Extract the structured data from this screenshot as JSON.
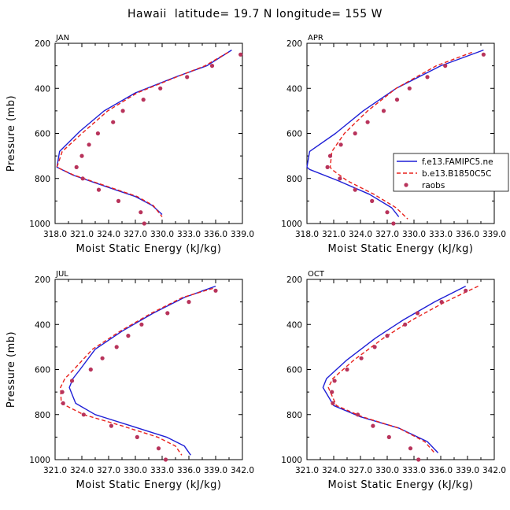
{
  "title": "Hawaii  latitude= 19.7 N longitude= 155 W",
  "colors": {
    "model_a": "#1f1fd6",
    "model_b": "#e8211c",
    "obs": "#b8335b"
  },
  "legend": {
    "items": [
      {
        "label": "f.e13.FAMIPC5.ne",
        "style": "solid",
        "color": "#1f1fd6"
      },
      {
        "label": "b.e13.B1850C5C",
        "style": "dashed",
        "color": "#e8211c"
      },
      {
        "label": "raobs",
        "style": "dots",
        "color": "#b8335b"
      }
    ]
  },
  "chart_data": [
    {
      "type": "line",
      "title": "JAN",
      "xlabel": "Moist Static Energy (kJ/kg)",
      "ylabel": "Pressure (mb)",
      "xlim": [
        318.0,
        339.0
      ],
      "xticks": [
        318.0,
        321.0,
        324.0,
        327.0,
        330.0,
        333.0,
        336.0,
        339.0
      ],
      "xtick_labels": [
        "318.0",
        "321.0",
        "324.0",
        "327.0",
        "330.0",
        "333.0",
        "336.0",
        "339.0"
      ],
      "ylim": [
        200,
        1000
      ],
      "yticks": [
        200,
        400,
        600,
        800,
        1000
      ],
      "series": [
        {
          "name": "f.e13.FAMIPC5.ne",
          "x": [
            337.8,
            335.0,
            331.5,
            327.0,
            323.5,
            320.8,
            318.5,
            318.2,
            320.0,
            324.0,
            327.0,
            328.9,
            330.0
          ],
          "y": [
            230,
            300,
            350,
            420,
            500,
            590,
            680,
            750,
            785,
            840,
            880,
            920,
            960
          ]
        },
        {
          "name": "b.e13.B1850C5C",
          "x": [
            337.4,
            334.8,
            331.6,
            327.2,
            323.9,
            321.3,
            318.8,
            318.2,
            320.1,
            324.2,
            327.2,
            329.0,
            330.0
          ],
          "y": [
            240,
            300,
            350,
            420,
            500,
            590,
            680,
            750,
            785,
            840,
            880,
            920,
            970
          ]
        },
        {
          "name": "raobs",
          "x": [
            338.8,
            335.6,
            332.8,
            329.8,
            327.9,
            325.6,
            324.5,
            322.8,
            321.8,
            321.0,
            320.4,
            321.1,
            322.9,
            325.1,
            327.6,
            328.0
          ],
          "y": [
            250,
            300,
            350,
            400,
            450,
            500,
            550,
            600,
            650,
            700,
            750,
            800,
            850,
            900,
            950,
            1000
          ]
        }
      ]
    },
    {
      "type": "line",
      "title": "APR",
      "xlabel": "Moist Static Energy (kJ/kg)",
      "ylabel": "Pressure (mb)",
      "xlim": [
        318.0,
        339.0
      ],
      "xticks": [
        318.0,
        321.0,
        324.0,
        327.0,
        330.0,
        333.0,
        336.0,
        339.0
      ],
      "xtick_labels": [
        "318.0",
        "321.0",
        "324.0",
        "327.0",
        "330.0",
        "333.0",
        "336.0",
        "339.0"
      ],
      "ylim": [
        200,
        1000
      ],
      "yticks": [
        200,
        400,
        600,
        800,
        1000
      ],
      "series": [
        {
          "name": "f.e13.FAMIPC5.ne",
          "x": [
            337.8,
            333.0,
            328.0,
            324.3,
            321.2,
            318.3,
            318.0,
            318.3,
            321.5,
            325.0,
            327.5,
            328.3
          ],
          "y": [
            230,
            300,
            400,
            500,
            600,
            680,
            750,
            760,
            810,
            870,
            930,
            970
          ]
        },
        {
          "name": "b.e13.B1850C5C",
          "x": [
            336.5,
            332.5,
            328.0,
            324.8,
            322.2,
            320.8,
            320.6,
            320.8,
            322.5,
            325.5,
            328.0,
            329.3
          ],
          "y": [
            240,
            300,
            400,
            500,
            600,
            680,
            750,
            760,
            810,
            870,
            930,
            980
          ]
        },
        {
          "name": "raobs",
          "x": [
            337.8,
            333.5,
            331.5,
            329.5,
            328.1,
            326.6,
            324.8,
            323.4,
            321.8,
            320.6,
            320.3,
            321.7,
            323.4,
            325.3,
            327.0,
            327.7
          ],
          "y": [
            250,
            300,
            350,
            400,
            450,
            500,
            550,
            600,
            650,
            700,
            750,
            800,
            850,
            900,
            950,
            1000
          ]
        }
      ]
    },
    {
      "type": "line",
      "title": "JUL",
      "xlabel": "Moist Static Energy (kJ/kg)",
      "ylabel": "Pressure (mb)",
      "xlim": [
        321.0,
        342.0
      ],
      "xticks": [
        321.0,
        324.0,
        327.0,
        330.0,
        333.0,
        336.0,
        339.0,
        342.0
      ],
      "xtick_labels": [
        "321.0",
        "324.0",
        "327.0",
        "330.0",
        "333.0",
        "336.0",
        "339.0",
        "342.0"
      ],
      "ylim": [
        200,
        1000
      ],
      "yticks": [
        200,
        400,
        600,
        800,
        1000
      ],
      "series": [
        {
          "name": "f.e13.FAMIPC5.ne",
          "x": [
            339.0,
            335.5,
            332.0,
            328.5,
            325.5,
            323.8,
            323.0,
            322.6,
            323.3,
            325.5,
            329.5,
            333.5,
            335.5,
            336.2
          ],
          "y": [
            230,
            280,
            350,
            430,
            510,
            600,
            640,
            680,
            750,
            800,
            850,
            900,
            940,
            980
          ]
        },
        {
          "name": "b.e13.B1850C5C",
          "x": [
            338.7,
            335.3,
            331.8,
            328.3,
            325.2,
            323.1,
            322.1,
            321.6,
            321.7,
            324.2,
            328.5,
            332.5,
            334.5,
            335.2
          ],
          "y": [
            240,
            280,
            350,
            430,
            510,
            600,
            640,
            680,
            750,
            800,
            850,
            900,
            940,
            980
          ]
        },
        {
          "name": "raobs",
          "x": [
            339.0,
            336.0,
            333.6,
            330.7,
            329.2,
            327.9,
            326.3,
            325.0,
            322.9,
            321.8,
            321.9,
            324.2,
            327.3,
            330.2,
            332.6,
            333.4
          ],
          "y": [
            250,
            300,
            350,
            400,
            450,
            500,
            550,
            600,
            650,
            700,
            750,
            800,
            850,
            900,
            950,
            1000
          ]
        }
      ]
    },
    {
      "type": "line",
      "title": "OCT",
      "xlabel": "Moist Static Energy (kJ/kg)",
      "ylabel": "Pressure (mb)",
      "xlim": [
        321.0,
        342.0
      ],
      "xticks": [
        321.0,
        324.0,
        327.0,
        330.0,
        333.0,
        336.0,
        339.0,
        342.0
      ],
      "xtick_labels": [
        "321.0",
        "324.0",
        "327.0",
        "330.0",
        "333.0",
        "336.0",
        "339.0",
        "342.0"
      ],
      "ylim": [
        200,
        1000
      ],
      "yticks": [
        200,
        400,
        600,
        800,
        1000
      ],
      "series": [
        {
          "name": "f.e13.FAMIPC5.ne",
          "x": [
            338.8,
            335.3,
            331.8,
            328.7,
            325.4,
            323.2,
            322.8,
            324.0,
            327.0,
            331.3,
            334.5,
            335.7
          ],
          "y": [
            230,
            300,
            380,
            460,
            560,
            640,
            680,
            760,
            810,
            860,
            920,
            970
          ]
        },
        {
          "name": "b.e13.B1850C5C",
          "x": [
            340.2,
            336.5,
            332.8,
            329.6,
            326.2,
            323.9,
            323.4,
            324.3,
            327.2,
            331.3,
            334.2,
            335.3
          ],
          "y": [
            230,
            300,
            380,
            460,
            560,
            640,
            680,
            760,
            810,
            860,
            920,
            970
          ]
        },
        {
          "name": "raobs",
          "x": [
            338.8,
            336.1,
            333.4,
            332.0,
            330.0,
            328.6,
            327.1,
            325.5,
            324.1,
            323.8,
            323.9,
            326.7,
            328.4,
            330.2,
            332.6,
            333.5
          ],
          "y": [
            250,
            300,
            350,
            400,
            450,
            500,
            550,
            600,
            650,
            700,
            750,
            800,
            850,
            900,
            950,
            1000
          ]
        }
      ]
    }
  ]
}
